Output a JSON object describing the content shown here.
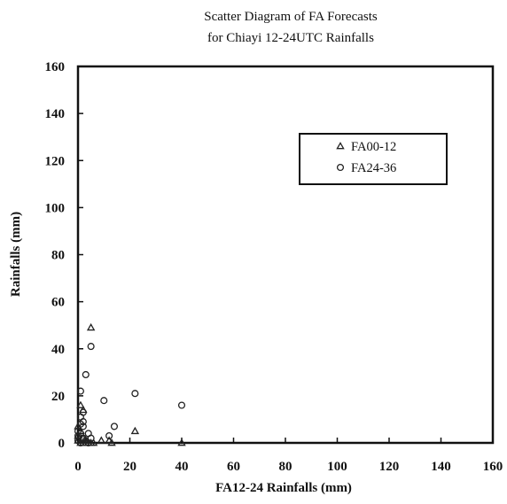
{
  "chart_data": {
    "type": "scatter",
    "title_lines": [
      "Scatter Diagram of FA Forecasts",
      "for Chiayi 12-24UTC Rainfalls"
    ],
    "xlabel": "FA12-24 Rainfalls (mm)",
    "ylabel": "Rainfalls (mm)",
    "xlim": [
      0,
      160
    ],
    "ylim": [
      0,
      160
    ],
    "xticks": [
      "0",
      "20",
      "40",
      "60",
      "80",
      "100",
      "120",
      "140",
      "160"
    ],
    "yticks": [
      "0",
      "20",
      "40",
      "60",
      "80",
      "100",
      "120",
      "140",
      "160"
    ],
    "grid": false,
    "legend_position": "upper-right",
    "series": [
      {
        "name": "FA00-12",
        "marker": "triangle",
        "points": [
          [
            5,
            49
          ],
          [
            1,
            16
          ],
          [
            2,
            14
          ],
          [
            0,
            7
          ],
          [
            1,
            5
          ],
          [
            0,
            3
          ],
          [
            2,
            2
          ],
          [
            3,
            1
          ],
          [
            0,
            1
          ],
          [
            1,
            0
          ],
          [
            2,
            0
          ],
          [
            3,
            0
          ],
          [
            4,
            0
          ],
          [
            5,
            0
          ],
          [
            6,
            0
          ],
          [
            9,
            1
          ],
          [
            12,
            1
          ],
          [
            13,
            0
          ],
          [
            22,
            5
          ],
          [
            40,
            0
          ]
        ]
      },
      {
        "name": "FA24-36",
        "marker": "circle",
        "points": [
          [
            5,
            41
          ],
          [
            3,
            29
          ],
          [
            1,
            22
          ],
          [
            22,
            21
          ],
          [
            10,
            18
          ],
          [
            40,
            16
          ],
          [
            2,
            13
          ],
          [
            1,
            11
          ],
          [
            2,
            9
          ],
          [
            1,
            8
          ],
          [
            2,
            7
          ],
          [
            14,
            7
          ],
          [
            0,
            5
          ],
          [
            1,
            4
          ],
          [
            4,
            4
          ],
          [
            0,
            3
          ],
          [
            2,
            2
          ],
          [
            5,
            2
          ],
          [
            12,
            3
          ],
          [
            0,
            1
          ],
          [
            3,
            1
          ],
          [
            1,
            0
          ],
          [
            4,
            0
          ]
        ]
      }
    ]
  }
}
